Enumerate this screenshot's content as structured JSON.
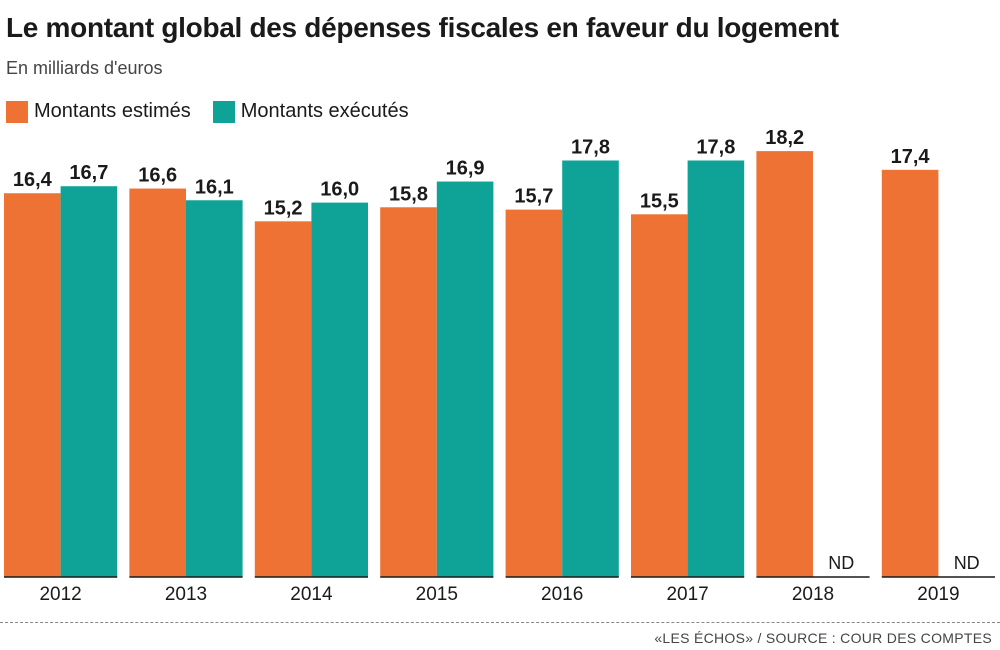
{
  "title": "Le montant global des dépenses fiscales en faveur du logement",
  "subtitle": "En milliards d'euros",
  "source": "«LES ÉCHOS» / SOURCE : COUR DES COMPTES",
  "colors": {
    "estimated": "#ED7234",
    "executed": "#0FA398"
  },
  "chart_data": {
    "type": "bar",
    "title": "Le montant global des dépenses fiscales en faveur du logement",
    "subtitle": "En milliards d'euros",
    "ylabel": "",
    "categories": [
      "2012",
      "2013",
      "2014",
      "2015",
      "2016",
      "2017",
      "2018",
      "2019"
    ],
    "series": [
      {
        "name": "Montants estimés",
        "values": [
          16.4,
          16.6,
          15.2,
          15.8,
          15.7,
          15.5,
          18.2,
          17.4
        ],
        "labels": [
          "16,4",
          "16,6",
          "15,2",
          "15,8",
          "15,7",
          "15,5",
          "18,2",
          "17,4"
        ]
      },
      {
        "name": "Montants exécutés",
        "values": [
          16.7,
          16.1,
          16.0,
          16.9,
          17.8,
          17.8,
          null,
          null
        ],
        "labels": [
          "16,7",
          "16,1",
          "16,0",
          "16,9",
          "17,8",
          "17,8",
          "ND",
          "ND"
        ]
      }
    ],
    "ylim": [
      0,
      20
    ],
    "grid": false,
    "legend": "top-left"
  }
}
